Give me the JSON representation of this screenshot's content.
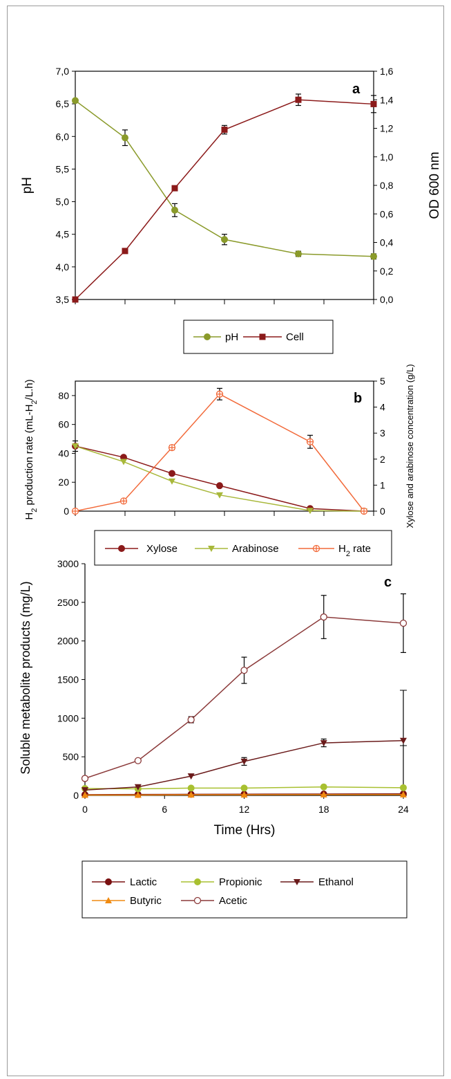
{
  "chart_data": [
    {
      "type": "line",
      "panel_label": "a",
      "x": [
        0,
        4,
        8,
        12,
        18,
        24
      ],
      "ylabel": "pH",
      "y2label": "OD 600 nm",
      "ylim": [
        3.5,
        7.0
      ],
      "y2lim": [
        0.0,
        1.6
      ],
      "yticks": [
        "3,5",
        "4,0",
        "4,5",
        "5,0",
        "5,5",
        "6,0",
        "6,5",
        "7,0"
      ],
      "y2ticks": [
        "0,0",
        "0,2",
        "0,4",
        "0,6",
        "0,8",
        "1,0",
        "1,2",
        "1,4",
        "1,6"
      ],
      "series": [
        {
          "name": "pH",
          "axis": "left",
          "color": "#8a9a2a",
          "marker": "circle",
          "values": [
            6.55,
            5.98,
            4.87,
            4.42,
            4.2,
            4.16
          ],
          "errors": [
            0.02,
            0.12,
            0.1,
            0.08,
            0.04,
            0.04
          ]
        },
        {
          "name": "Cell",
          "axis": "right",
          "color": "#8b1a1a",
          "marker": "square",
          "values": [
            0.0,
            0.34,
            0.78,
            1.19,
            1.4,
            1.37
          ],
          "errors": [
            0.0,
            0.0,
            0.0,
            0.03,
            0.04,
            0.06
          ]
        }
      ],
      "legend": [
        "pH",
        "Cell"
      ]
    },
    {
      "type": "line",
      "panel_label": "b",
      "x": [
        0,
        4,
        8,
        12,
        18,
        24
      ],
      "ylabel_main": "H",
      "ylabel_sub": "2",
      "ylabel_rest": " production rate (mL-H",
      "ylabel_sub2": "2",
      "ylabel_end": "/L.h)",
      "y2label": "Xylose and arabinose concentration (g/L)",
      "ylim": [
        0,
        90
      ],
      "y2lim": [
        0,
        5
      ],
      "yticks": [
        "0",
        "20",
        "40",
        "60",
        "80"
      ],
      "y2ticks": [
        "0",
        "1",
        "2",
        "3",
        "4",
        "5"
      ],
      "series": [
        {
          "name": "Xylose",
          "axis": "right",
          "color": "#8b1a1a",
          "marker": "circle",
          "values": [
            2.5,
            2.07,
            1.45,
            0.98,
            0.1,
            0.0
          ],
          "errors": [
            0.2,
            0,
            0,
            0,
            0,
            0
          ]
        },
        {
          "name": "Arabinose",
          "axis": "right",
          "color": "#a8b83a",
          "marker": "triangle-down",
          "values": [
            2.5,
            1.9,
            1.15,
            0.62,
            0.02,
            0.0
          ],
          "errors": [
            0,
            0,
            0,
            0,
            0,
            0
          ]
        },
        {
          "name": "H2 rate",
          "axis": "left",
          "color": "#f26a3a",
          "marker": "cross-circle",
          "values": [
            0,
            7,
            44,
            81,
            48,
            0
          ],
          "errors": [
            0,
            1,
            1.5,
            4,
            4.5,
            0
          ]
        }
      ],
      "legend_labels": {
        "xylose": "Xylose",
        "arabinose": "Arabinose",
        "h2_main": "H",
        "h2_sub": "2",
        "h2_rest": " rate"
      }
    },
    {
      "type": "line",
      "panel_label": "c",
      "x": [
        0,
        4,
        8,
        12,
        18,
        24
      ],
      "xlabel": "Time (Hrs)",
      "ylabel": "Soluble metabolite products (mg/L)",
      "xlim": [
        0,
        24
      ],
      "ylim": [
        0,
        3000
      ],
      "xticks": [
        "0",
        "6",
        "12",
        "18",
        "24"
      ],
      "yticks": [
        "0",
        "500",
        "1000",
        "1500",
        "2000",
        "2500",
        "3000"
      ],
      "series": [
        {
          "name": "Lactic",
          "color": "#7a1010",
          "marker": "circle",
          "values": [
            10,
            12,
            14,
            16,
            18,
            20
          ],
          "errors": [
            0,
            0,
            0,
            0,
            0,
            0
          ]
        },
        {
          "name": "Propionic",
          "color": "#a8c030",
          "marker": "circle",
          "values": [
            90,
            85,
            95,
            95,
            110,
            100
          ],
          "errors": [
            0,
            0,
            0,
            0,
            0,
            0
          ]
        },
        {
          "name": "Ethanol",
          "color": "#6a1a1a",
          "marker": "triangle-down",
          "values": [
            70,
            110,
            250,
            440,
            680,
            710
          ],
          "errors": [
            0,
            0,
            0,
            50,
            50,
            0
          ]
        },
        {
          "name": "Butyric",
          "color": "#f08a10",
          "marker": "triangle-up",
          "values": [
            5,
            5,
            8,
            8,
            10,
            10
          ],
          "errors": [
            0,
            0,
            0,
            0,
            0,
            0
          ]
        },
        {
          "name": "Acetic",
          "color": "#8b3a3a",
          "marker": "open-circle",
          "values": [
            220,
            450,
            980,
            1620,
            2310,
            2230
          ],
          "errors": [
            20,
            20,
            40,
            170,
            280,
            380
          ]
        }
      ],
      "legend": [
        "Lactic",
        "Propionic",
        "Ethanol",
        "Butyric",
        "Acetic"
      ]
    }
  ]
}
